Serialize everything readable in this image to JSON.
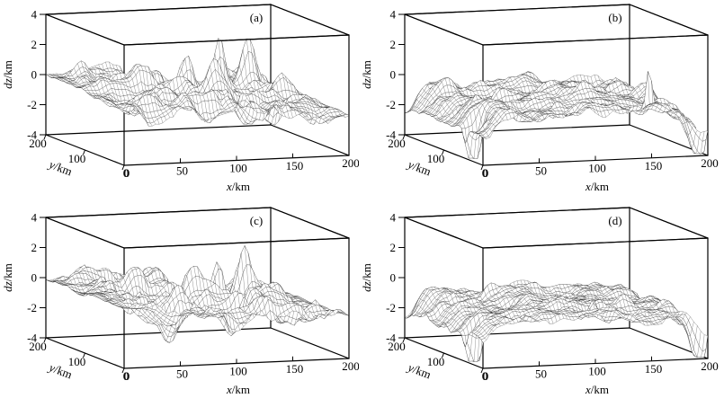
{
  "figure": {
    "background": "#ffffff",
    "ink": "#000000",
    "mesh_color": "#000000",
    "mesh_fill": "#ffffff",
    "description": "Four 3D wireframe surface plots of terrain-like random surfaces dz(x,y)"
  },
  "chart_data": [
    {
      "label": "(a)",
      "type": "surface3d_wireframe",
      "x_label_var": "x",
      "x_label_rest": "/km",
      "y_label_var": "y",
      "y_label_rest": "/km",
      "z_label_var": "dz",
      "z_label_rest": "/km",
      "x_ticks": [
        0,
        50,
        100,
        150,
        200
      ],
      "y_ticks": [
        200,
        100,
        0
      ],
      "z_ticks": [
        4,
        2,
        0,
        -2,
        -4
      ],
      "x_range": [
        0,
        200
      ],
      "y_range": [
        0,
        200
      ],
      "z_range": [
        -4,
        4
      ],
      "surface": {
        "seed": 3,
        "style": "peaky",
        "grid_nx": 64,
        "grid_ny": 44,
        "mean_left": -0.05,
        "mean_right": -1.25,
        "fluct_amp": 1.0,
        "dip_left": 0,
        "dip_right": 0,
        "z_approx_range": [
          -3.0,
          2.7
        ],
        "peaks": [
          {
            "x": 92,
            "y": 105,
            "h": 2.4,
            "s": 6
          },
          {
            "x": 126,
            "y": 118,
            "h": 3.4,
            "s": 5
          },
          {
            "x": 154,
            "y": 128,
            "h": 2.7,
            "s": 5.5
          },
          {
            "x": 101,
            "y": 62,
            "h": 1.7,
            "s": 6
          },
          {
            "x": 54,
            "y": 108,
            "h": 1.6,
            "s": 7
          },
          {
            "x": 173,
            "y": 92,
            "h": 1.3,
            "s": 6
          },
          {
            "x": 118,
            "y": 38,
            "h": -1.7,
            "s": 8
          },
          {
            "x": 66,
            "y": 152,
            "h": -1.4,
            "s": 9
          },
          {
            "x": 150,
            "y": 55,
            "h": -1.2,
            "s": 8
          }
        ]
      }
    },
    {
      "label": "(b)",
      "type": "surface3d_wireframe",
      "x_label_var": "x",
      "x_label_rest": "/km",
      "y_label_var": "y",
      "y_label_rest": "/km",
      "z_label_var": "dz",
      "z_label_rest": "/km",
      "x_ticks": [
        0,
        50,
        100,
        150,
        200
      ],
      "y_ticks": [
        200,
        100,
        0
      ],
      "z_ticks": [
        4,
        2,
        0,
        -2,
        -4
      ],
      "x_range": [
        0,
        200
      ],
      "y_range": [
        0,
        200
      ],
      "z_range": [
        -4,
        4
      ],
      "surface": {
        "seed": 8,
        "style": "flat",
        "grid_nx": 64,
        "grid_ny": 44,
        "mean_left": -0.85,
        "mean_right": -0.85,
        "fluct_amp": 0.62,
        "dip_left": 2.1,
        "dip_right": 2.3,
        "z_approx_range": [
          -4.0,
          1.6
        ],
        "peaks": [
          {
            "x": 8,
            "y": 45,
            "h": -3.8,
            "s": 5
          },
          {
            "x": 157,
            "y": 28,
            "h": 3.0,
            "s": 2.6
          },
          {
            "x": 197,
            "y": 15,
            "h": -2.4,
            "s": 8
          },
          {
            "x": 58,
            "y": 120,
            "h": 0.9,
            "s": 8
          },
          {
            "x": 120,
            "y": 85,
            "h": 0.8,
            "s": 7
          },
          {
            "x": 30,
            "y": 170,
            "h": 0.7,
            "s": 7
          }
        ]
      }
    },
    {
      "label": "(c)",
      "type": "surface3d_wireframe",
      "x_label_var": "x",
      "x_label_rest": "/km",
      "y_label_var": "y",
      "y_label_rest": "/km",
      "z_label_var": "dz",
      "z_label_rest": "/km",
      "x_ticks": [
        0,
        50,
        100,
        150,
        200
      ],
      "y_ticks": [
        200,
        100,
        0
      ],
      "z_ticks": [
        4,
        2,
        0,
        -2,
        -4
      ],
      "x_range": [
        0,
        200
      ],
      "y_range": [
        0,
        200
      ],
      "z_range": [
        -4,
        4
      ],
      "surface": {
        "seed": 5,
        "style": "peaky",
        "grid_nx": 64,
        "grid_ny": 44,
        "mean_left": -0.05,
        "mean_right": -1.25,
        "fluct_amp": 1.05,
        "dip_left": 0,
        "dip_right": 0,
        "z_approx_range": [
          -3.4,
          2.6
        ],
        "peaks": [
          {
            "x": 123,
            "y": 112,
            "h": 3.3,
            "s": 5
          },
          {
            "x": 149,
            "y": 124,
            "h": 2.8,
            "s": 5
          },
          {
            "x": 94,
            "y": 92,
            "h": 2.2,
            "s": 6
          },
          {
            "x": 50,
            "y": 118,
            "h": 2.3,
            "s": 9
          },
          {
            "x": 70,
            "y": 58,
            "h": 1.5,
            "s": 7
          },
          {
            "x": 170,
            "y": 100,
            "h": 1.2,
            "s": 6
          },
          {
            "x": 116,
            "y": 48,
            "h": -2.4,
            "s": 7
          },
          {
            "x": 54,
            "y": 40,
            "h": -1.6,
            "s": 8
          },
          {
            "x": 150,
            "y": 160,
            "h": -1.2,
            "s": 8
          }
        ]
      }
    },
    {
      "label": "(d)",
      "type": "surface3d_wireframe",
      "x_label_var": "x",
      "x_label_rest": "/km",
      "y_label_var": "y",
      "y_label_rest": "/km",
      "z_label_var": "dz",
      "z_label_rest": "/km",
      "x_ticks": [
        0,
        50,
        100,
        150,
        200
      ],
      "y_ticks": [
        200,
        100,
        0
      ],
      "z_ticks": [
        4,
        2,
        0,
        -2,
        -4
      ],
      "x_range": [
        0,
        200
      ],
      "y_range": [
        0,
        200
      ],
      "z_range": [
        -4,
        4
      ],
      "surface": {
        "seed": 11,
        "style": "flat",
        "grid_nx": 64,
        "grid_ny": 44,
        "mean_left": -0.95,
        "mean_right": -0.95,
        "fluct_amp": 0.6,
        "dip_left": 2.0,
        "dip_right": 2.2,
        "z_approx_range": [
          -4.0,
          1.1
        ],
        "peaks": [
          {
            "x": 9,
            "y": 45,
            "h": -3.8,
            "s": 5
          },
          {
            "x": 196,
            "y": 12,
            "h": -3.0,
            "s": 7
          },
          {
            "x": 107,
            "y": 26,
            "h": 1.5,
            "s": 4
          },
          {
            "x": 58,
            "y": 150,
            "h": 0.8,
            "s": 7
          },
          {
            "x": 150,
            "y": 60,
            "h": 0.7,
            "s": 6
          },
          {
            "x": 25,
            "y": 100,
            "h": 0.8,
            "s": 6
          }
        ]
      }
    }
  ]
}
